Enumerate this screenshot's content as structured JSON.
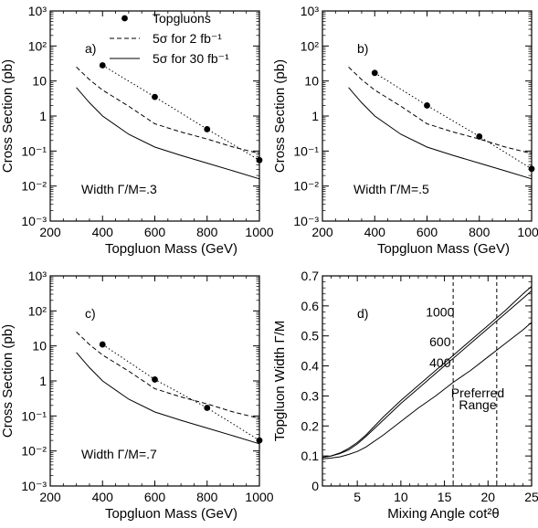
{
  "chart_data": [
    {
      "panel": "a)",
      "type": "line",
      "xlabel": "Topgluon Mass (GeV)",
      "ylabel": "Cross Section (pb)",
      "xlim": [
        200,
        1000
      ],
      "ylim_log10": [
        -3,
        3
      ],
      "yscale": "log",
      "x_ticks": [
        "200",
        "400",
        "600",
        "800",
        "1000"
      ],
      "y_ticks": [
        "10⁻³",
        "10⁻²",
        "10⁻¹",
        "1",
        "10",
        "10²",
        "10³"
      ],
      "annotation": "Width Γ/M=.3",
      "legend": {
        "placement": "top-right",
        "items": [
          {
            "label": "Topgluons",
            "style": "dots-dotted"
          },
          {
            "label": "5σ for 2 fb⁻¹",
            "style": "dashed"
          },
          {
            "label": "5σ for 30 fb⁻¹",
            "style": "solid"
          }
        ]
      },
      "series": [
        {
          "style": "dots-dotted",
          "x": [
            400,
            600,
            800,
            1000
          ],
          "y": [
            28,
            3.5,
            0.42,
            0.055
          ]
        },
        {
          "style": "dashed",
          "x": [
            300,
            350,
            400,
            500,
            600,
            700,
            800,
            900,
            1000
          ],
          "y": [
            25,
            11,
            5.5,
            1.9,
            0.6,
            0.35,
            0.22,
            0.13,
            0.085
          ]
        },
        {
          "style": "solid",
          "x": [
            300,
            350,
            400,
            500,
            600,
            700,
            800,
            900,
            1000
          ],
          "y": [
            6.5,
            2.4,
            1.0,
            0.3,
            0.13,
            0.075,
            0.045,
            0.027,
            0.016
          ]
        }
      ]
    },
    {
      "panel": "b)",
      "type": "line",
      "xlabel": "Topgluon Mass (GeV)",
      "ylabel": "Cross Section (pb)",
      "xlim": [
        200,
        1000
      ],
      "ylim_log10": [
        -3,
        3
      ],
      "yscale": "log",
      "x_ticks": [
        "200",
        "400",
        "600",
        "800",
        "1000"
      ],
      "y_ticks": [
        "10⁻³",
        "10⁻²",
        "10⁻¹",
        "1",
        "10",
        "10²",
        "10³"
      ],
      "annotation": "Width Γ/M=.5",
      "series": [
        {
          "style": "dots-dotted",
          "x": [
            400,
            600,
            800,
            1000
          ],
          "y": [
            17,
            2.0,
            0.26,
            0.031
          ]
        },
        {
          "style": "dashed",
          "x": [
            300,
            350,
            400,
            500,
            600,
            700,
            800,
            900,
            1000
          ],
          "y": [
            25,
            11,
            5.5,
            1.9,
            0.6,
            0.35,
            0.22,
            0.13,
            0.085
          ]
        },
        {
          "style": "solid",
          "x": [
            300,
            350,
            400,
            500,
            600,
            700,
            800,
            900,
            1000
          ],
          "y": [
            6.5,
            2.4,
            1.0,
            0.3,
            0.13,
            0.075,
            0.045,
            0.027,
            0.016
          ]
        }
      ]
    },
    {
      "panel": "c)",
      "type": "line",
      "xlabel": "Topgluon Mass (GeV)",
      "ylabel": "Cross Section (pb)",
      "xlim": [
        200,
        1000
      ],
      "ylim_log10": [
        -3,
        3
      ],
      "yscale": "log",
      "x_ticks": [
        "200",
        "400",
        "600",
        "800",
        "1000"
      ],
      "y_ticks": [
        "10⁻³",
        "10⁻²",
        "10⁻¹",
        "1",
        "10",
        "10²",
        "10³"
      ],
      "annotation": "Width Γ/M=.7",
      "series": [
        {
          "style": "dots-dotted",
          "x": [
            400,
            600,
            800,
            1000
          ],
          "y": [
            11,
            1.1,
            0.17,
            0.02
          ]
        },
        {
          "style": "dashed",
          "x": [
            300,
            350,
            400,
            500,
            600,
            700,
            800,
            900,
            1000
          ],
          "y": [
            25,
            11,
            5.5,
            1.9,
            0.6,
            0.35,
            0.22,
            0.13,
            0.085
          ]
        },
        {
          "style": "solid",
          "x": [
            300,
            350,
            400,
            500,
            600,
            700,
            800,
            900,
            1000
          ],
          "y": [
            6.5,
            2.4,
            1.0,
            0.3,
            0.13,
            0.075,
            0.045,
            0.027,
            0.016
          ]
        }
      ]
    },
    {
      "panel": "d)",
      "type": "line",
      "xlabel": "Mixing Angle cot²θ",
      "ylabel": "Topgluon Width Γ/M",
      "xlim": [
        1,
        25
      ],
      "ylim": [
        0,
        0.7
      ],
      "yscale": "linear",
      "x_ticks": [
        "5",
        "10",
        "15",
        "20",
        "25"
      ],
      "y_ticks": [
        "0",
        "0.1",
        "0.2",
        "0.3",
        "0.4",
        "0.5",
        "0.6",
        "0.7"
      ],
      "preferred_range": {
        "label_line1": "Preferred",
        "label_line2": "Range",
        "x": [
          16,
          21
        ]
      },
      "series": [
        {
          "name": "1000",
          "x": [
            1,
            2,
            3,
            4,
            5,
            6,
            8,
            10,
            12,
            14,
            16,
            18,
            20,
            22,
            24,
            25
          ],
          "y": [
            0.095,
            0.1,
            0.11,
            0.125,
            0.145,
            0.17,
            0.23,
            0.285,
            0.335,
            0.385,
            0.435,
            0.485,
            0.535,
            0.585,
            0.64,
            0.665
          ]
        },
        {
          "name": "600",
          "x": [
            1,
            2,
            3,
            4,
            5,
            6,
            8,
            10,
            12,
            14,
            16,
            18,
            20,
            22,
            24,
            25
          ],
          "y": [
            0.095,
            0.1,
            0.108,
            0.12,
            0.14,
            0.165,
            0.22,
            0.275,
            0.325,
            0.375,
            0.425,
            0.475,
            0.525,
            0.575,
            0.625,
            0.65
          ]
        },
        {
          "name": "400",
          "x": [
            1,
            2,
            3,
            4,
            5,
            6,
            8,
            10,
            12,
            14,
            16,
            18,
            20,
            22,
            24,
            25
          ],
          "y": [
            0.09,
            0.093,
            0.097,
            0.105,
            0.115,
            0.13,
            0.17,
            0.215,
            0.26,
            0.3,
            0.345,
            0.385,
            0.43,
            0.475,
            0.52,
            0.545
          ]
        }
      ]
    }
  ]
}
